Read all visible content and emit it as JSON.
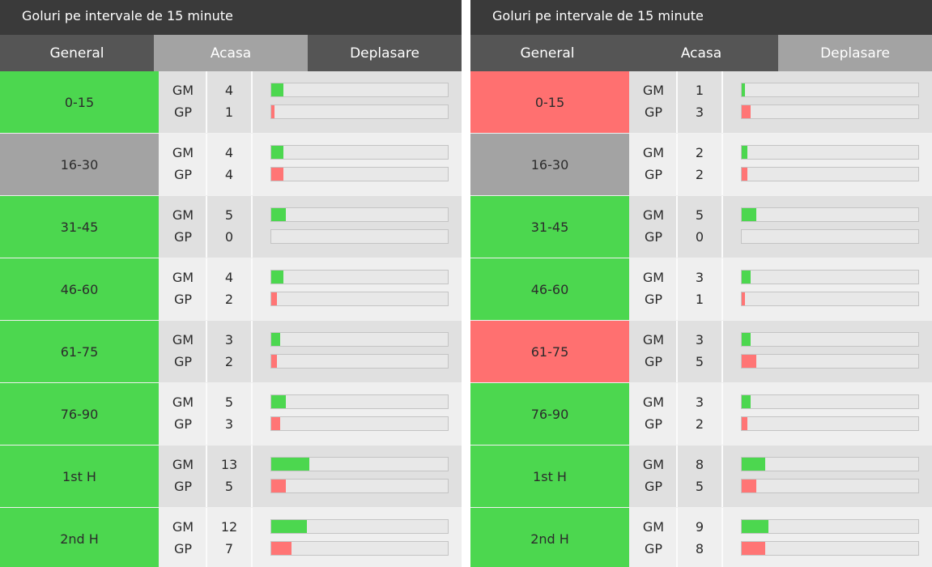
{
  "colors": {
    "title_bg": "#3a3a3a",
    "tab_bg": "#555555",
    "tab_active_bg": "#a3a3a3",
    "good": "#4cd74f",
    "bad": "#ff7070",
    "neutral": "#a3a3a3",
    "scored_bar": "#4cd74f",
    "conceded_bar": "#ff7575"
  },
  "panels": [
    {
      "title": "Goluri pe intervale de 15 minute",
      "tabs": [
        {
          "label": "General",
          "active": false
        },
        {
          "label": "Acasa",
          "active": true
        },
        {
          "label": "Deplasare",
          "active": false
        }
      ],
      "max_goals": 60,
      "rows": [
        {
          "interval": "0-15",
          "status": "good",
          "gm_label": "GM",
          "gp_label": "GP",
          "gm": "4",
          "gp": "1"
        },
        {
          "interval": "16-30",
          "status": "neutral",
          "gm_label": "GM",
          "gp_label": "GP",
          "gm": "4",
          "gp": "4"
        },
        {
          "interval": "31-45",
          "status": "good",
          "gm_label": "GM",
          "gp_label": "GP",
          "gm": "5",
          "gp": "0"
        },
        {
          "interval": "46-60",
          "status": "good",
          "gm_label": "GM",
          "gp_label": "GP",
          "gm": "4",
          "gp": "2"
        },
        {
          "interval": "61-75",
          "status": "good",
          "gm_label": "GM",
          "gp_label": "GP",
          "gm": "3",
          "gp": "2"
        },
        {
          "interval": "76-90",
          "status": "good",
          "gm_label": "GM",
          "gp_label": "GP",
          "gm": "5",
          "gp": "3"
        },
        {
          "interval": "1st H",
          "status": "good",
          "gm_label": "GM",
          "gp_label": "GP",
          "gm": "13",
          "gp": "5"
        },
        {
          "interval": "2nd H",
          "status": "good",
          "gm_label": "GM",
          "gp_label": "GP",
          "gm": "12",
          "gp": "7"
        }
      ]
    },
    {
      "title": "Goluri pe intervale de 15 minute",
      "tabs": [
        {
          "label": "General",
          "active": false
        },
        {
          "label": "Acasa",
          "active": false
        },
        {
          "label": "Deplasare",
          "active": true
        }
      ],
      "max_goals": 60,
      "rows": [
        {
          "interval": "0-15",
          "status": "bad",
          "gm_label": "GM",
          "gp_label": "GP",
          "gm": "1",
          "gp": "3"
        },
        {
          "interval": "16-30",
          "status": "neutral",
          "gm_label": "GM",
          "gp_label": "GP",
          "gm": "2",
          "gp": "2"
        },
        {
          "interval": "31-45",
          "status": "good",
          "gm_label": "GM",
          "gp_label": "GP",
          "gm": "5",
          "gp": "0"
        },
        {
          "interval": "46-60",
          "status": "good",
          "gm_label": "GM",
          "gp_label": "GP",
          "gm": "3",
          "gp": "1"
        },
        {
          "interval": "61-75",
          "status": "bad",
          "gm_label": "GM",
          "gp_label": "GP",
          "gm": "3",
          "gp": "5"
        },
        {
          "interval": "76-90",
          "status": "good",
          "gm_label": "GM",
          "gp_label": "GP",
          "gm": "3",
          "gp": "2"
        },
        {
          "interval": "1st H",
          "status": "good",
          "gm_label": "GM",
          "gp_label": "GP",
          "gm": "8",
          "gp": "5"
        },
        {
          "interval": "2nd H",
          "status": "good",
          "gm_label": "GM",
          "gp_label": "GP",
          "gm": "9",
          "gp": "8"
        }
      ]
    }
  ]
}
